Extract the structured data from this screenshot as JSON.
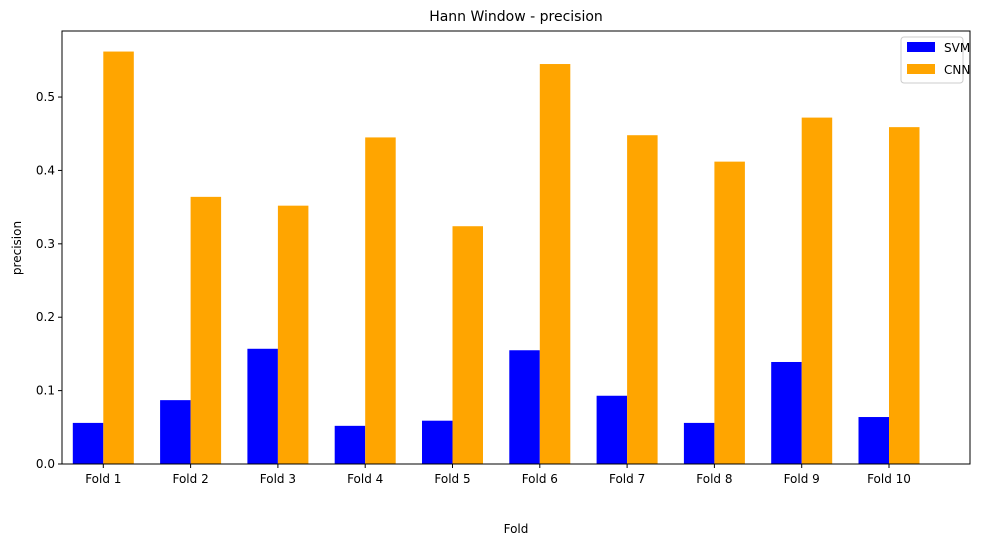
{
  "chart_data": {
    "type": "bar",
    "title": "Hann Window - precision",
    "xlabel": "Fold",
    "ylabel": "precision",
    "categories": [
      "Fold 1",
      "Fold 2",
      "Fold 3",
      "Fold 4",
      "Fold 5",
      "Fold 6",
      "Fold 7",
      "Fold 8",
      "Fold 9",
      "Fold 10"
    ],
    "series": [
      {
        "name": "SVM",
        "color": "#0000ff",
        "values": [
          0.056,
          0.087,
          0.157,
          0.052,
          0.059,
          0.155,
          0.093,
          0.056,
          0.139,
          0.064
        ]
      },
      {
        "name": "CNN",
        "color": "#ffa500",
        "values": [
          0.562,
          0.364,
          0.352,
          0.445,
          0.324,
          0.545,
          0.448,
          0.412,
          0.472,
          0.459
        ]
      }
    ],
    "ylim": [
      0,
      0.59
    ],
    "yticks": [
      "0.0",
      "0.1",
      "0.2",
      "0.3",
      "0.4",
      "0.5"
    ],
    "grid": false,
    "legend_position": "top-right"
  }
}
